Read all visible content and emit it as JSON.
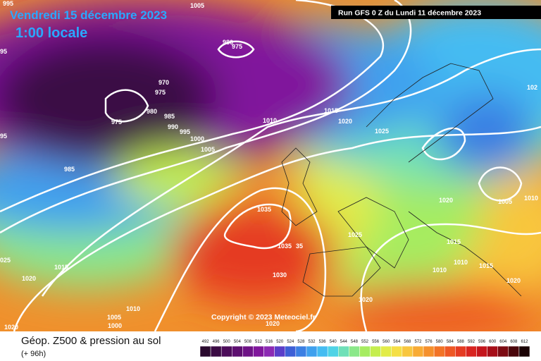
{
  "header": {
    "date": "Vendredi 15 décembre 2023",
    "time": "1:00 locale",
    "run": "Run GFS 0 Z du Lundi 11 décembre 2023"
  },
  "copyright": "Copyright © 2023 Meteociel.fr",
  "legend": {
    "title": "Géop. Z500 & pression au sol",
    "lead": "(+ 96h)",
    "labels": [
      "492",
      "496",
      "500",
      "504",
      "508",
      "512",
      "516",
      "520",
      "524",
      "528",
      "532",
      "536",
      "540",
      "544",
      "548",
      "552",
      "556",
      "560",
      "564",
      "568",
      "572",
      "576",
      "580",
      "584",
      "588",
      "592",
      "596",
      "600",
      "604",
      "608",
      "612"
    ],
    "colors": [
      "#2a0a2e",
      "#3b0b44",
      "#4c0c5a",
      "#5d0f70",
      "#6e1386",
      "#80179c",
      "#8c2ab3",
      "#5a3ec9",
      "#3d5fd6",
      "#3b7fe3",
      "#3fa0ee",
      "#45bcf2",
      "#4fd3e6",
      "#6fe0b8",
      "#8be88a",
      "#a6ec60",
      "#c5ee4e",
      "#e2ec48",
      "#f5df45",
      "#f8c63e",
      "#f8ab34",
      "#f5902c",
      "#f27326",
      "#ee5724",
      "#e53b22",
      "#d82420",
      "#c4151c",
      "#a60e18",
      "#7c0a12",
      "#4a060a",
      "#1a0204"
    ]
  },
  "isobars": [
    "1005",
    "995",
    "980",
    "975",
    "970",
    "975",
    "980",
    "985",
    "975",
    "990",
    "995",
    "1000",
    "1005",
    "985",
    "95",
    "95",
    "1010",
    "1015",
    "1020",
    "1025",
    "102",
    "1020",
    "1005",
    "1010",
    "1035",
    "1035",
    "35",
    "1025",
    "1015",
    "1010",
    "1010",
    "1015",
    "1030",
    "1020",
    "1020",
    "1015",
    "1020",
    "025",
    "1010",
    "1005",
    "1000",
    "1020",
    "1020"
  ]
}
